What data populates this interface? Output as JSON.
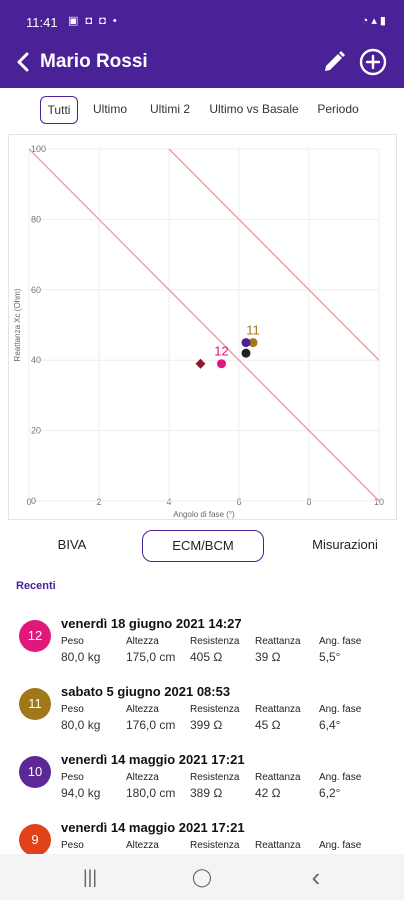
{
  "status_bar": {
    "time": "11:41",
    "left_icons": "▣ ◘ ◘ •",
    "right_icons": "◔ ▴ ▮"
  },
  "app_bar": {
    "title": "Mario Rossi",
    "back_icon": "chevron-left-icon",
    "edit_icon": "pencil-icon",
    "add_icon": "plus-circle-icon"
  },
  "filters": [
    "Tutti",
    "Ultimo",
    "Ultimi 2",
    "Ultimo vs Basale",
    "Periodo"
  ],
  "active_filter": "Tutti",
  "chart_data": {
    "type": "scatter",
    "xlabel": "Angolo di fase (°)",
    "ylabel": "Reattanza Xc (Ohm)",
    "xlim": [
      0,
      10
    ],
    "ylim": [
      0,
      100
    ],
    "x_ticks": [
      "0",
      "2",
      "4",
      "6",
      "8",
      "10"
    ],
    "y_ticks": [
      "0",
      "20",
      "40",
      "60",
      "80",
      "100"
    ],
    "reference_lines": [
      {
        "points": [
          [
            0,
            100
          ],
          [
            10,
            0
          ]
        ],
        "color": "#e8a0a0"
      },
      {
        "points": [
          [
            4,
            100
          ],
          [
            10,
            40
          ]
        ],
        "color": "#e8a0a0"
      }
    ],
    "points": [
      {
        "x": 4.9,
        "y": 39,
        "shape": "diamond",
        "color": "#8b1a2e",
        "label": ""
      },
      {
        "x": 5.5,
        "y": 39,
        "shape": "circle",
        "color": "#e0187a",
        "label": "12"
      },
      {
        "x": 6.2,
        "y": 42,
        "shape": "circle",
        "color": "#222222",
        "label": ""
      },
      {
        "x": 6.4,
        "y": 45,
        "shape": "circle",
        "color": "#a0781a",
        "label": "11"
      },
      {
        "x": 6.2,
        "y": 45,
        "shape": "circle",
        "color": "#4a2196",
        "label": ""
      }
    ]
  },
  "modes": [
    "BIVA",
    "ECM/BCM",
    "Misurazioni"
  ],
  "active_mode": "ECM/BCM",
  "recent": {
    "title": "Recenti",
    "columns": [
      "Peso",
      "Altezza",
      "Resistenza",
      "Reattanza",
      "Ang. fase"
    ],
    "entries": [
      {
        "number": "12",
        "color": "#e0187a",
        "date": "venerdì 18 giugno 2021 14:27",
        "values": [
          "80,0 kg",
          "175,0 cm",
          "405 Ω",
          "39 Ω",
          "5,5°"
        ]
      },
      {
        "number": "11",
        "color": "#a0781a",
        "date": "sabato 5 giugno 2021 08:53",
        "values": [
          "80,0 kg",
          "176,0 cm",
          "399 Ω",
          "45 Ω",
          "6,4°"
        ]
      },
      {
        "number": "10",
        "color": "#5b2896",
        "date": "venerdì 14 maggio 2021 17:21",
        "values": [
          "94,0 kg",
          "180,0 cm",
          "389 Ω",
          "42 Ω",
          "6,2°"
        ]
      },
      {
        "number": "9",
        "color": "#e0421a",
        "date": "venerdì 14 maggio 2021 17:21",
        "values": [
          "",
          "",
          "",
          "",
          ""
        ]
      }
    ]
  },
  "nav": {
    "recents": "|||",
    "home": "◯",
    "back": "‹"
  }
}
